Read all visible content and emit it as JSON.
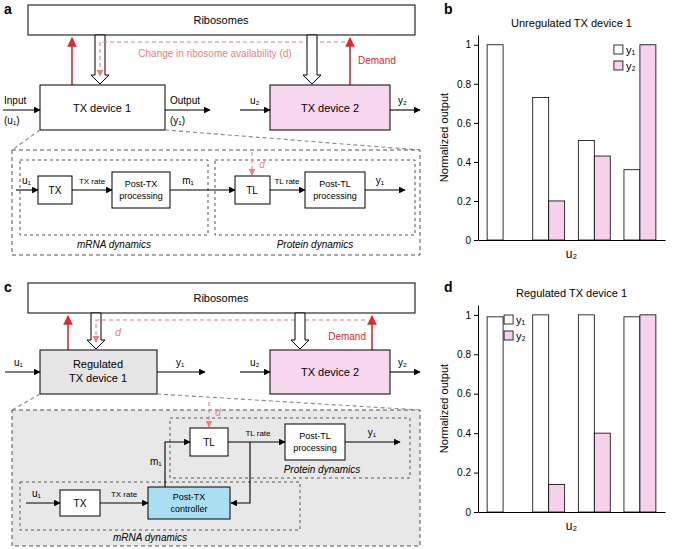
{
  "panel_labels": [
    "a",
    "b",
    "c",
    "d"
  ],
  "diagrams": [
    {
      "ribosomes": "Ribosomes",
      "change_label": "Change in ribosome availability (d)",
      "demand": "Demand",
      "device1": [
        "TX device 1"
      ],
      "device1_in": [
        "Input",
        "(u₁)"
      ],
      "device1_out": [
        "Output",
        "(y₁)"
      ],
      "device2": "TX device 2",
      "device2_in": "u₂",
      "device2_out": "y₂",
      "detail_in": "u₁",
      "tx": "TX",
      "tx_rate": "TX rate",
      "post_tx": [
        "Post-TX",
        "processing"
      ],
      "m": "m₁",
      "d": "d",
      "tl": "TL",
      "tl_rate": "TL rate",
      "post_tl": [
        "Post-TL",
        "processing"
      ],
      "detail_out": "y₁",
      "mrna": "mRNA dynamics",
      "protein": "Protein dynamics"
    },
    {
      "ribosomes": "Ribosomes",
      "change_label": "d",
      "demand": "Demand",
      "device1": [
        "Regulated",
        "TX device 1"
      ],
      "device1_in": [
        "u₁"
      ],
      "device1_out": [
        "y₁"
      ],
      "device2": "TX device 2",
      "device2_in": "u₂",
      "device2_out": "y₂",
      "detail_in": "u₁",
      "tx": "TX",
      "tx_rate": "TX rate",
      "post_tx": [
        "Post-TX",
        "controller"
      ],
      "m": "m₁",
      "d": "d",
      "tl": "TL",
      "tl_rate": "TL rate",
      "post_tl": [
        "Post-TL",
        "processing"
      ],
      "detail_out": "y₁",
      "mrna": "mRNA dynamics",
      "protein": "Protein dynamics"
    }
  ],
  "chart_data": [
    {
      "type": "bar",
      "title": "Unregulated TX device 1",
      "y_label": "Normalized output",
      "x_label": "u₂",
      "categories": [
        null,
        null,
        null,
        null
      ],
      "series": [
        {
          "name": "y₁",
          "color": "#ffffff",
          "values": [
            1,
            0.73,
            0.51,
            0.36
          ]
        },
        {
          "name": "y₂",
          "color": "#f7d0ec",
          "values": [
            0,
            0.2,
            0.43,
            1
          ]
        }
      ],
      "ylim": [
        0,
        1.05
      ],
      "yticks": [
        0,
        0.2,
        0.4,
        0.6,
        0.8,
        1
      ],
      "tick_labels": "y",
      "legend": "upper right"
    },
    {
      "type": "bar",
      "title": "Regulated TX device 1",
      "y_label": "Normalized output",
      "x_label": "u₂",
      "categories": [
        null,
        null,
        null,
        null
      ],
      "series": [
        {
          "name": "y₁",
          "color": "#ffffff",
          "values": [
            0.99,
            1,
            1,
            0.99
          ]
        },
        {
          "name": "y₂",
          "color": "#f7d0ec",
          "values": [
            0,
            0.14,
            0.4,
            1
          ]
        }
      ],
      "ylim": [
        0,
        1.05
      ],
      "yticks": [
        0,
        0.2,
        0.4,
        0.6,
        0.8,
        1
      ],
      "tick_labels": "y",
      "legend": "upper left"
    }
  ]
}
